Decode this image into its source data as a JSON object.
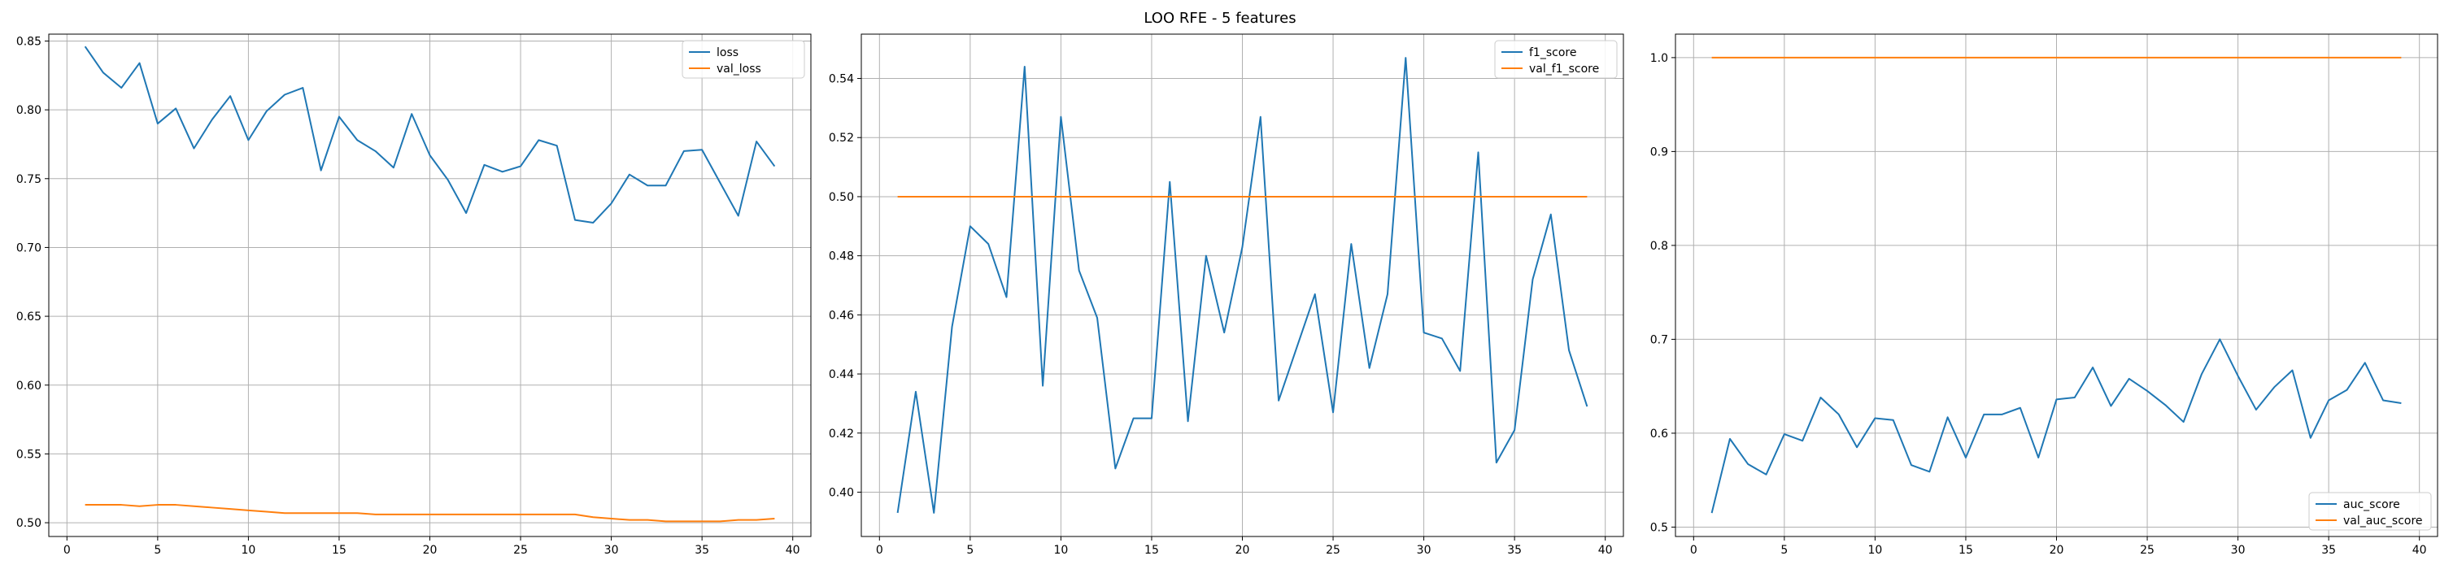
{
  "figure_title": "LOO RFE - 5 features",
  "colors": {
    "series_train": "#1f77b4",
    "series_val": "#ff7f0e",
    "grid": "#b0b0b0"
  },
  "chart_data": [
    {
      "type": "line",
      "title": "",
      "xlabel": "",
      "ylabel": "",
      "xlim": [
        -1,
        41
      ],
      "ylim": [
        0.49,
        0.855
      ],
      "xticks": [
        0,
        5,
        10,
        15,
        20,
        25,
        30,
        35,
        40
      ],
      "yticks": [
        0.5,
        0.55,
        0.6,
        0.65,
        0.7,
        0.75,
        0.8,
        0.85
      ],
      "ytick_labels": [
        "0.50",
        "0.55",
        "0.60",
        "0.65",
        "0.70",
        "0.75",
        "0.80",
        "0.85"
      ],
      "grid": true,
      "legend_position": "top-right",
      "x": [
        1,
        2,
        3,
        4,
        5,
        6,
        7,
        8,
        9,
        10,
        11,
        12,
        13,
        14,
        15,
        16,
        17,
        18,
        19,
        20,
        21,
        22,
        23,
        24,
        25,
        26,
        27,
        28,
        29,
        30,
        31,
        32,
        33,
        34,
        35,
        36,
        37,
        38,
        39
      ],
      "series": [
        {
          "name": "loss",
          "color": "#1f77b4",
          "values": [
            0.846,
            0.827,
            0.816,
            0.834,
            0.79,
            0.801,
            0.772,
            0.793,
            0.81,
            0.778,
            0.799,
            0.811,
            0.816,
            0.756,
            0.795,
            0.778,
            0.77,
            0.758,
            0.797,
            0.767,
            0.749,
            0.725,
            0.76,
            0.755,
            0.759,
            0.778,
            0.774,
            0.72,
            0.718,
            0.732,
            0.753,
            0.745,
            0.745,
            0.77,
            0.771,
            0.747,
            0.723,
            0.777,
            0.759
          ]
        },
        {
          "name": "val_loss",
          "color": "#ff7f0e",
          "values": [
            0.513,
            0.513,
            0.513,
            0.512,
            0.513,
            0.513,
            0.512,
            0.511,
            0.51,
            0.509,
            0.508,
            0.507,
            0.507,
            0.507,
            0.507,
            0.507,
            0.506,
            0.506,
            0.506,
            0.506,
            0.506,
            0.506,
            0.506,
            0.506,
            0.506,
            0.506,
            0.506,
            0.506,
            0.504,
            0.503,
            0.502,
            0.502,
            0.501,
            0.501,
            0.501,
            0.501,
            0.502,
            0.502,
            0.503
          ]
        }
      ]
    },
    {
      "type": "line",
      "title": "",
      "xlabel": "",
      "ylabel": "",
      "xlim": [
        -1,
        41
      ],
      "ylim": [
        0.385,
        0.555
      ],
      "xticks": [
        0,
        5,
        10,
        15,
        20,
        25,
        30,
        35,
        40
      ],
      "yticks": [
        0.4,
        0.42,
        0.44,
        0.46,
        0.48,
        0.5,
        0.52,
        0.54
      ],
      "ytick_labels": [
        "0.40",
        "0.42",
        "0.44",
        "0.46",
        "0.48",
        "0.50",
        "0.52",
        "0.54"
      ],
      "grid": true,
      "legend_position": "top-right",
      "x": [
        1,
        2,
        3,
        4,
        5,
        6,
        7,
        8,
        9,
        10,
        11,
        12,
        13,
        14,
        15,
        16,
        17,
        18,
        19,
        20,
        21,
        22,
        23,
        24,
        25,
        26,
        27,
        28,
        29,
        30,
        31,
        32,
        33,
        34,
        35,
        36,
        37,
        38,
        39
      ],
      "series": [
        {
          "name": "f1_score",
          "color": "#1f77b4",
          "values": [
            0.393,
            0.434,
            0.393,
            0.456,
            0.49,
            0.484,
            0.466,
            0.544,
            0.436,
            0.527,
            0.475,
            0.459,
            0.408,
            0.425,
            0.425,
            0.505,
            0.424,
            0.48,
            0.454,
            0.483,
            0.527,
            0.431,
            0.449,
            0.467,
            0.427,
            0.484,
            0.442,
            0.467,
            0.547,
            0.454,
            0.452,
            0.441,
            0.515,
            0.41,
            0.421,
            0.472,
            0.494,
            0.448,
            0.429
          ]
        },
        {
          "name": "val_f1_score",
          "color": "#ff7f0e",
          "values": [
            0.5,
            0.5,
            0.5,
            0.5,
            0.5,
            0.5,
            0.5,
            0.5,
            0.5,
            0.5,
            0.5,
            0.5,
            0.5,
            0.5,
            0.5,
            0.5,
            0.5,
            0.5,
            0.5,
            0.5,
            0.5,
            0.5,
            0.5,
            0.5,
            0.5,
            0.5,
            0.5,
            0.5,
            0.5,
            0.5,
            0.5,
            0.5,
            0.5,
            0.5,
            0.5,
            0.5,
            0.5,
            0.5,
            0.5
          ]
        }
      ]
    },
    {
      "type": "line",
      "title": "",
      "xlabel": "",
      "ylabel": "",
      "xlim": [
        -1,
        41
      ],
      "ylim": [
        0.49,
        1.025
      ],
      "xticks": [
        0,
        5,
        10,
        15,
        20,
        25,
        30,
        35,
        40
      ],
      "yticks": [
        0.5,
        0.6,
        0.7,
        0.8,
        0.9,
        1.0
      ],
      "ytick_labels": [
        "0.5",
        "0.6",
        "0.7",
        "0.8",
        "0.9",
        "1.0"
      ],
      "grid": true,
      "legend_position": "bottom-right",
      "x": [
        1,
        2,
        3,
        4,
        5,
        6,
        7,
        8,
        9,
        10,
        11,
        12,
        13,
        14,
        15,
        16,
        17,
        18,
        19,
        20,
        21,
        22,
        23,
        24,
        25,
        26,
        27,
        28,
        29,
        30,
        31,
        32,
        33,
        34,
        35,
        36,
        37,
        38,
        39
      ],
      "series": [
        {
          "name": "auc_score",
          "color": "#1f77b4",
          "values": [
            0.515,
            0.594,
            0.567,
            0.556,
            0.599,
            0.592,
            0.638,
            0.62,
            0.585,
            0.616,
            0.614,
            0.566,
            0.559,
            0.617,
            0.574,
            0.62,
            0.62,
            0.627,
            0.574,
            0.636,
            0.638,
            0.67,
            0.629,
            0.658,
            0.645,
            0.63,
            0.612,
            0.663,
            0.7,
            0.661,
            0.625,
            0.649,
            0.667,
            0.595,
            0.635,
            0.646,
            0.675,
            0.635,
            0.632
          ]
        },
        {
          "name": "val_auc_score",
          "color": "#ff7f0e",
          "values": [
            1.0,
            1.0,
            1.0,
            1.0,
            1.0,
            1.0,
            1.0,
            1.0,
            1.0,
            1.0,
            1.0,
            1.0,
            1.0,
            1.0,
            1.0,
            1.0,
            1.0,
            1.0,
            1.0,
            1.0,
            1.0,
            1.0,
            1.0,
            1.0,
            1.0,
            1.0,
            1.0,
            1.0,
            1.0,
            1.0,
            1.0,
            1.0,
            1.0,
            1.0,
            1.0,
            1.0,
            1.0,
            1.0,
            1.0
          ]
        }
      ]
    }
  ]
}
